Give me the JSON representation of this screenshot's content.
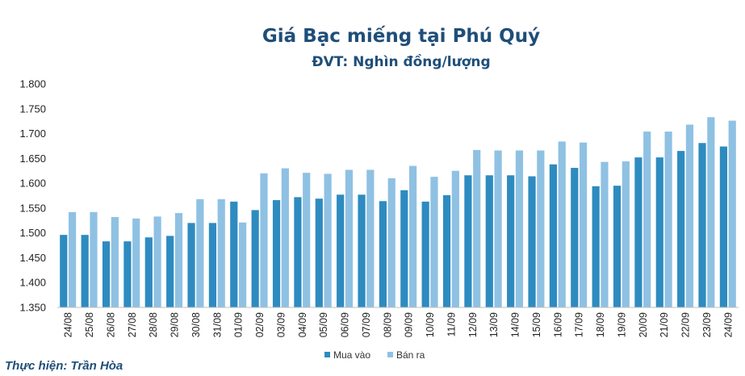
{
  "chart_data": {
    "type": "bar",
    "title": "Giá Bạc miếng tại Phú Quý",
    "subtitle": "ĐVT: Nghìn đồng/lượng",
    "categories": [
      "24/08",
      "25/08",
      "26/08",
      "27/08",
      "28/08",
      "29/08",
      "30/08",
      "31/08",
      "01/09",
      "02/09",
      "03/09",
      "04/09",
      "05/09",
      "06/09",
      "07/09",
      "08/09",
      "09/09",
      "10/09",
      "11/09",
      "12/09",
      "13/09",
      "14/09",
      "15/09",
      "16/09",
      "17/09",
      "18/09",
      "19/09",
      "20/09",
      "21/09",
      "22/09",
      "23/09",
      "24/09"
    ],
    "series": [
      {
        "name": "Mua vào",
        "color": "#2e8bc0",
        "values": [
          1496,
          1496,
          1483,
          1483,
          1491,
          1494,
          1520,
          1520,
          1563,
          1546,
          1566,
          1572,
          1569,
          1577,
          1577,
          1564,
          1586,
          1563,
          1576,
          1616,
          1616,
          1616,
          1614,
          1638,
          1631,
          1594,
          1595,
          1652,
          1652,
          1665,
          1681,
          1674
        ]
      },
      {
        "name": "Bán ra",
        "color": "#8fc1e3",
        "values": [
          1542,
          1542,
          1532,
          1529,
          1533,
          1540,
          1568,
          1568,
          1521,
          1620,
          1630,
          1621,
          1619,
          1627,
          1627,
          1610,
          1635,
          1613,
          1625,
          1667,
          1666,
          1666,
          1666,
          1684,
          1682,
          1643,
          1644,
          1704,
          1704,
          1718,
          1733,
          1726
        ]
      }
    ],
    "ylim": [
      1350,
      1800
    ],
    "yticks": [
      "1.350",
      "1.400",
      "1.450",
      "1.500",
      "1.550",
      "1.600",
      "1.650",
      "1.700",
      "1.750",
      "1.800"
    ],
    "grid": false,
    "legend_position": "bottom"
  },
  "credit": "Thực hiện: Trần Hòa"
}
